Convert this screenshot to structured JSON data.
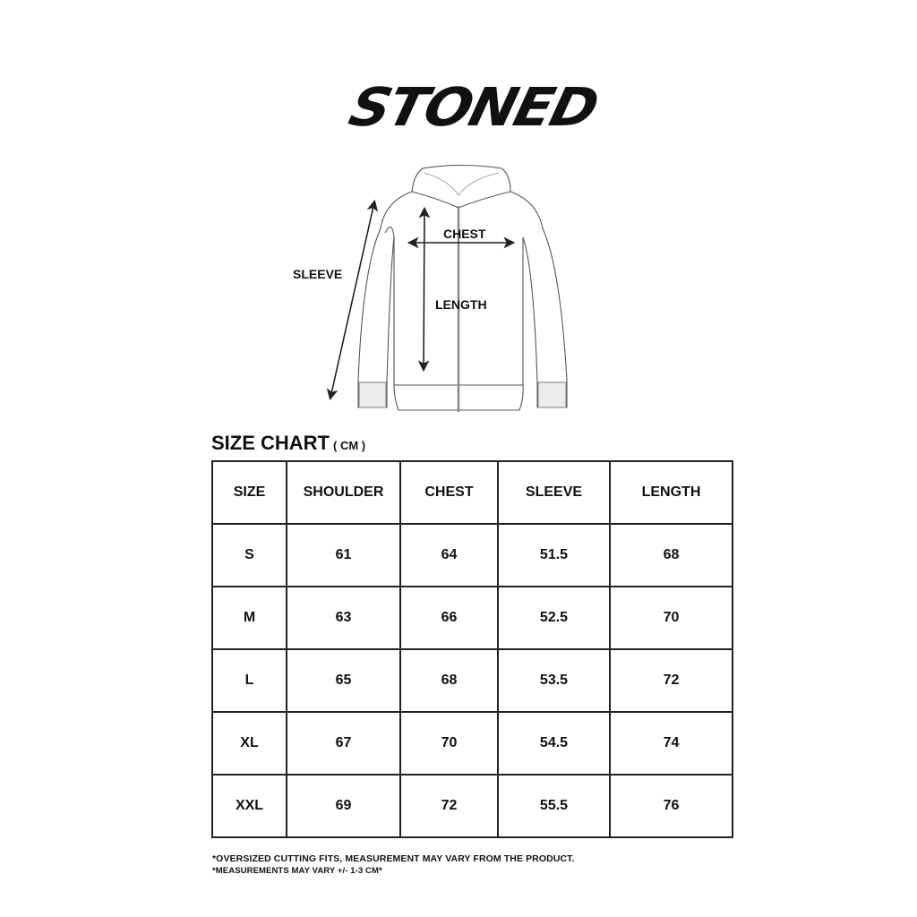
{
  "brand": {
    "logo_text": "STONED"
  },
  "diagram": {
    "labels": {
      "sleeve": "SLEEVE",
      "chest": "CHEST",
      "length": "LENGTH"
    }
  },
  "size_chart": {
    "title": "SIZE CHART",
    "unit": "( CM )",
    "headers": [
      "SIZE",
      "SHOULDER",
      "CHEST",
      "SLEEVE",
      "LENGTH"
    ],
    "rows": [
      [
        "S",
        "61",
        "64",
        "51.5",
        "68"
      ],
      [
        "M",
        "63",
        "66",
        "52.5",
        "70"
      ],
      [
        "L",
        "65",
        "68",
        "53.5",
        "72"
      ],
      [
        "XL",
        "67",
        "70",
        "54.5",
        "74"
      ],
      [
        "XXL",
        "69",
        "72",
        "55.5",
        "76"
      ]
    ]
  },
  "notes": [
    "*OVERSIZED CUTTING FITS, MEASUREMENT MAY VARY FROM THE PRODUCT.",
    "*MEASUREMENTS MAY VARY +/- 1-3 CM*"
  ]
}
